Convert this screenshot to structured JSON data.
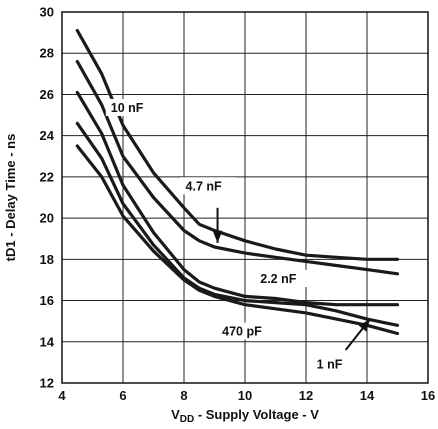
{
  "chart_data": {
    "type": "line",
    "xlabel_main": "V",
    "xlabel_sub": "DD",
    "xlabel_rest": " - Supply Voltage - V",
    "ylabel": "tD1 - Delay Time - ns",
    "xlim": [
      4,
      16
    ],
    "ylim": [
      12,
      30
    ],
    "xticks": [
      4,
      6,
      8,
      10,
      12,
      14,
      16
    ],
    "yticks": [
      12,
      14,
      16,
      18,
      20,
      22,
      24,
      26,
      28,
      30
    ],
    "grid": true,
    "series": [
      {
        "name": "10 nF",
        "x": [
          4.5,
          5.3,
          6.0,
          7.0,
          8.0,
          8.5,
          9.0,
          10.0,
          11.0,
          12.0,
          13.0,
          14.0,
          15.0
        ],
        "y": [
          29.1,
          27.0,
          24.5,
          22.2,
          20.5,
          19.7,
          19.4,
          18.9,
          18.5,
          18.2,
          18.1,
          18.0,
          18.0
        ]
      },
      {
        "name": "4.7 nF",
        "x": [
          4.5,
          5.3,
          6.0,
          7.0,
          8.0,
          8.5,
          9.0,
          10.0,
          11.0,
          12.0,
          13.0,
          14.0,
          15.0
        ],
        "y": [
          27.6,
          25.5,
          23.0,
          21.0,
          19.4,
          18.9,
          18.6,
          18.3,
          18.1,
          17.9,
          17.7,
          17.5,
          17.3
        ]
      },
      {
        "name": "2.2 nF",
        "x": [
          4.5,
          5.3,
          6.0,
          7.0,
          8.0,
          8.5,
          9.0,
          10.0,
          11.0,
          12.0,
          13.0,
          14.0,
          15.0
        ],
        "y": [
          26.1,
          24.1,
          21.6,
          19.3,
          17.5,
          16.9,
          16.6,
          16.2,
          16.1,
          15.9,
          15.8,
          15.8,
          15.8
        ]
      },
      {
        "name": "1 nF",
        "x": [
          4.5,
          5.3,
          6.0,
          7.0,
          8.0,
          8.5,
          9.0,
          10.0,
          11.0,
          12.0,
          13.0,
          14.0,
          15.0
        ],
        "y": [
          24.6,
          22.9,
          20.7,
          18.7,
          17.1,
          16.6,
          16.3,
          16.0,
          15.9,
          15.8,
          15.5,
          15.1,
          14.8
        ]
      },
      {
        "name": "470 pF",
        "x": [
          4.5,
          5.3,
          6.0,
          7.0,
          8.0,
          8.5,
          9.0,
          10.0,
          11.0,
          12.0,
          13.0,
          14.0,
          15.0
        ],
        "y": [
          23.5,
          22.0,
          20.1,
          18.4,
          17.0,
          16.5,
          16.2,
          15.8,
          15.6,
          15.4,
          15.1,
          14.8,
          14.4
        ]
      }
    ]
  }
}
